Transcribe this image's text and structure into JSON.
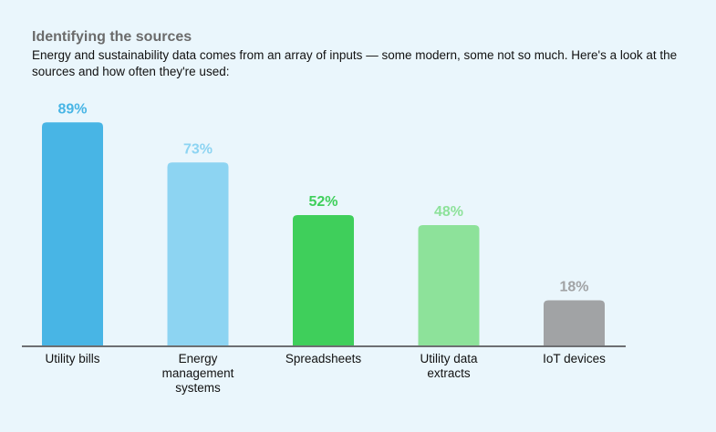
{
  "title": "Identifying the sources",
  "subtitle": "Energy and sustainability data comes from an array of inputs — some modern, some not so much. Here's a look at the sources and how often they're used:",
  "chart_data": {
    "type": "bar",
    "categories": [
      "Utility bills",
      "Energy management systems",
      "Spreadsheets",
      "Utility data extracts",
      "IoT devices"
    ],
    "values": [
      89,
      73,
      52,
      48,
      18
    ],
    "value_labels": [
      "89%",
      "73%",
      "52%",
      "48%",
      "18%"
    ],
    "category_lines": [
      [
        "Utility bills"
      ],
      [
        "Energy",
        "management",
        "systems"
      ],
      [
        "Spreadsheets"
      ],
      [
        "Utility data",
        "extracts"
      ],
      [
        "IoT devices"
      ]
    ],
    "colors": [
      "#48b5e5",
      "#8dd4f2",
      "#3fcf5b",
      "#8de29a",
      "#a1a3a5"
    ],
    "label_colors": [
      "#48b5e5",
      "#8dd4f2",
      "#3fcf5b",
      "#8de29a",
      "#a1a3a5"
    ],
    "ylim": [
      0,
      100
    ],
    "grid": false,
    "legend": "none"
  }
}
